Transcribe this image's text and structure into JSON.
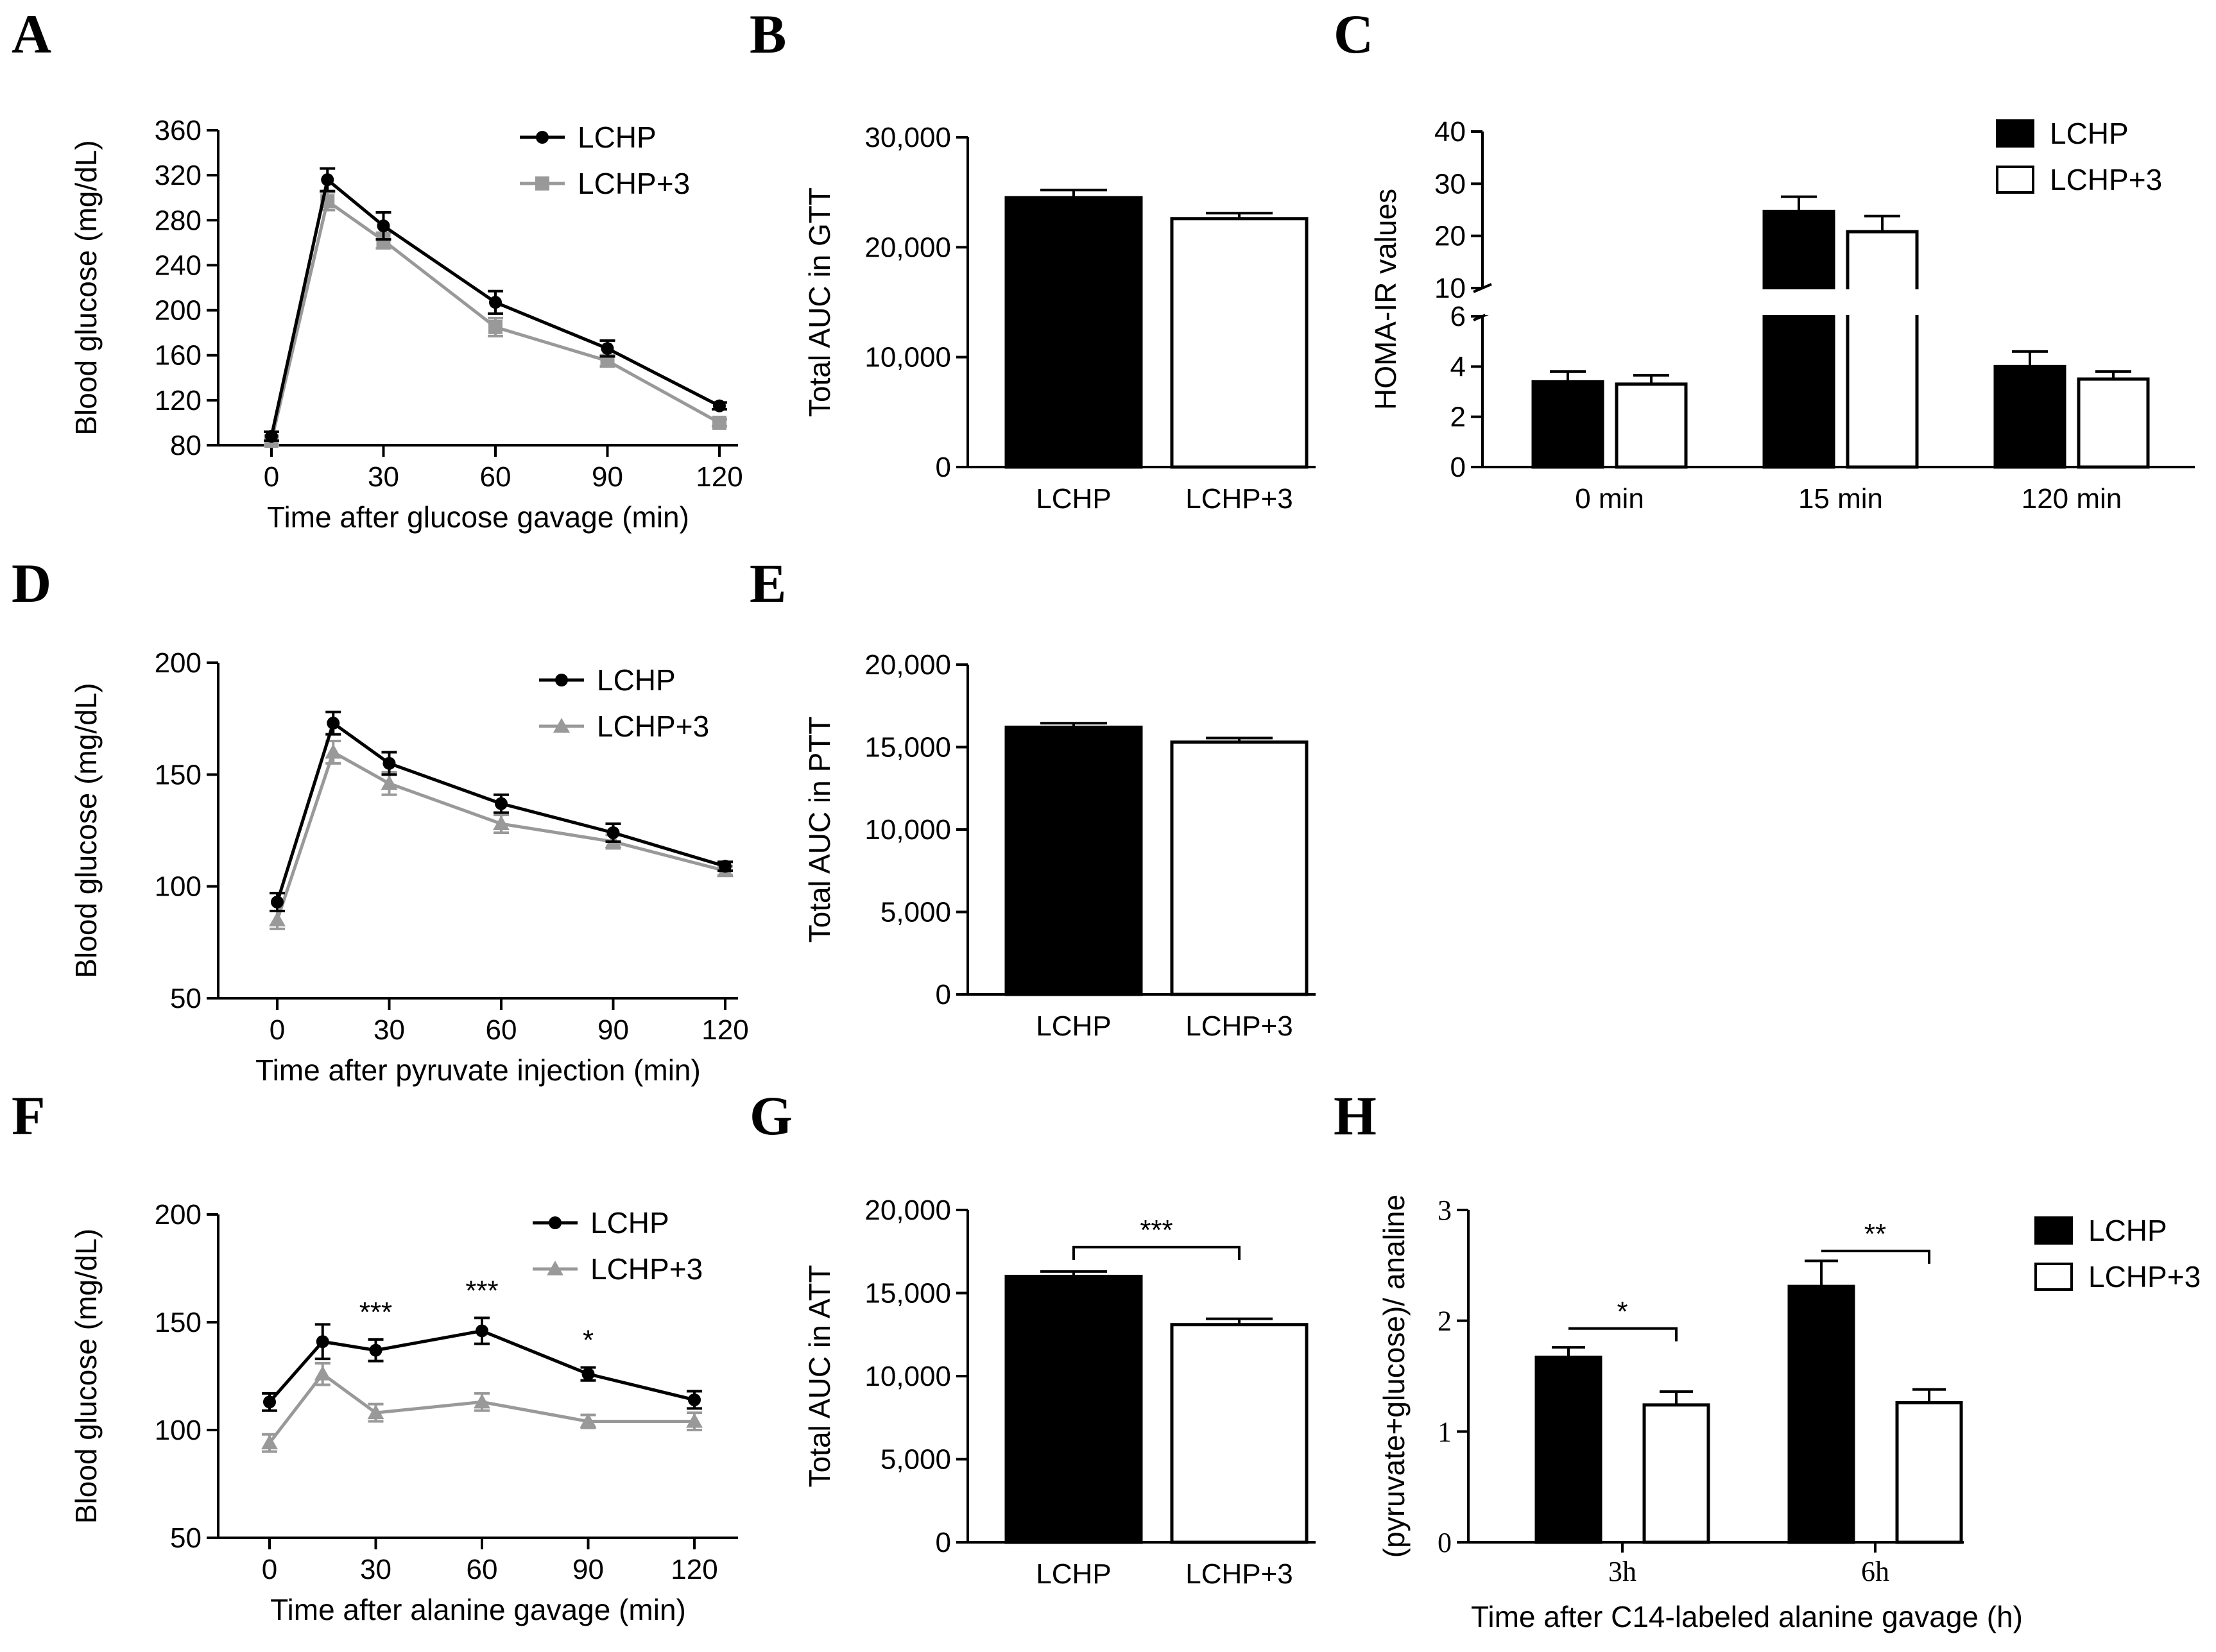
{
  "colors": {
    "lchp": "#000000",
    "lchp3": "#999999",
    "bar_lchp": "#000000",
    "bar_lchp3": "#ffffff"
  },
  "chart_data": [
    {
      "panel": "A",
      "type": "line",
      "title": "",
      "xlabel": "Time after glucose gavage (min)",
      "ylabel": "Blood glucose (mg/dL)",
      "xlim": [
        0,
        120
      ],
      "ylim": [
        80,
        360
      ],
      "xticks": [
        0,
        30,
        60,
        90,
        120
      ],
      "yticks": [
        80,
        120,
        160,
        200,
        240,
        280,
        320,
        360
      ],
      "x": [
        0,
        15,
        30,
        60,
        90,
        120
      ],
      "series": [
        {
          "name": "LCHP",
          "marker": "circle",
          "values": [
            88,
            316,
            275,
            207,
            166,
            115
          ],
          "err": [
            4,
            10,
            12,
            10,
            7,
            3
          ]
        },
        {
          "name": "LCHP+3",
          "marker": "square",
          "values": [
            84,
            297,
            262,
            185,
            155,
            100
          ],
          "err": [
            4,
            8,
            7,
            8,
            5,
            3
          ]
        }
      ],
      "legend": "top-right"
    },
    {
      "panel": "B",
      "type": "bar",
      "title": "",
      "xlabel": "",
      "ylabel": "Total AUC in GTT",
      "ylim": [
        0,
        30000
      ],
      "yticks": [
        0,
        10000,
        20000,
        30000
      ],
      "ytick_labels": [
        "0",
        "10,000",
        "20,000",
        "30,000"
      ],
      "categories": [
        "LCHP",
        "LCHP+3"
      ],
      "values": [
        24500,
        22600
      ],
      "err": [
        700,
        500
      ]
    },
    {
      "panel": "C",
      "type": "bar",
      "title": "",
      "xlabel": "",
      "ylabel": "HOMA-IR values",
      "broken_axis": {
        "lower": [
          0,
          6
        ],
        "upper": [
          10,
          40
        ]
      },
      "yticks_lower": [
        0,
        2,
        4,
        6
      ],
      "yticks_upper": [
        10,
        20,
        30,
        40
      ],
      "categories": [
        "0 min",
        "15 min",
        "120 min"
      ],
      "series": [
        {
          "name": "LCHP",
          "values": [
            3.4,
            24.7,
            4.0
          ],
          "err": [
            0.4,
            2.8,
            0.6
          ]
        },
        {
          "name": "LCHP+3",
          "values": [
            3.3,
            20.8,
            3.5
          ],
          "err": [
            0.35,
            3.0,
            0.3
          ]
        }
      ],
      "legend": "top-right"
    },
    {
      "panel": "D",
      "type": "line",
      "title": "",
      "xlabel": "Time after pyruvate injection (min)",
      "ylabel": "Blood glucose (mg/dL)",
      "xlim": [
        0,
        120
      ],
      "ylim": [
        50,
        200
      ],
      "xticks": [
        0,
        30,
        60,
        90,
        120
      ],
      "yticks": [
        50,
        100,
        150,
        200
      ],
      "x": [
        0,
        15,
        30,
        60,
        90,
        120
      ],
      "series": [
        {
          "name": "LCHP",
          "marker": "circle",
          "values": [
            93,
            173,
            155,
            137,
            124,
            109
          ],
          "err": [
            4,
            5,
            5,
            4,
            4,
            2
          ]
        },
        {
          "name": "LCHP+3",
          "marker": "triangle",
          "values": [
            85,
            160,
            146,
            128,
            120,
            107
          ],
          "err": [
            4,
            5,
            5,
            4,
            3,
            2
          ]
        }
      ],
      "legend": "top-right"
    },
    {
      "panel": "E",
      "type": "bar",
      "title": "",
      "xlabel": "",
      "ylabel": "Total AUC in PTT",
      "ylim": [
        0,
        20000
      ],
      "yticks": [
        0,
        5000,
        10000,
        15000,
        20000
      ],
      "ytick_labels": [
        "0",
        "5,000",
        "10,000",
        "15,000",
        "20,000"
      ],
      "categories": [
        "LCHP",
        "LCHP+3"
      ],
      "values": [
        16200,
        15300
      ],
      "err": [
        250,
        250
      ]
    },
    {
      "panel": "F",
      "type": "line",
      "title": "",
      "xlabel": "Time after alanine gavage (min)",
      "ylabel": "Blood glucose (mg/dL)",
      "xlim": [
        0,
        120
      ],
      "ylim": [
        50,
        200
      ],
      "xticks": [
        0,
        30,
        60,
        90,
        120
      ],
      "yticks": [
        50,
        100,
        150,
        200
      ],
      "x": [
        0,
        15,
        30,
        60,
        90,
        120
      ],
      "series": [
        {
          "name": "LCHP",
          "marker": "circle",
          "values": [
            113,
            141,
            137,
            146,
            126,
            114
          ],
          "err": [
            4,
            8,
            5,
            6,
            3,
            4
          ]
        },
        {
          "name": "LCHP+3",
          "marker": "triangle",
          "values": [
            94,
            126,
            108,
            113,
            104,
            104
          ],
          "err": [
            4,
            5,
            4,
            4,
            3,
            4
          ]
        }
      ],
      "annotations": [
        {
          "x": 30,
          "text": "***"
        },
        {
          "x": 60,
          "text": "***"
        },
        {
          "x": 90,
          "text": "*"
        }
      ],
      "legend": "top-right"
    },
    {
      "panel": "G",
      "type": "bar",
      "title": "",
      "xlabel": "",
      "ylabel": "Total AUC in ATT",
      "ylim": [
        0,
        20000
      ],
      "yticks": [
        0,
        5000,
        10000,
        15000,
        20000
      ],
      "ytick_labels": [
        "0",
        "5,000",
        "10,000",
        "15,000",
        "20,000"
      ],
      "categories": [
        "LCHP",
        "LCHP+3"
      ],
      "values": [
        16000,
        13100
      ],
      "err": [
        300,
        350
      ],
      "significance": "***"
    },
    {
      "panel": "H",
      "type": "bar",
      "title": "",
      "xlabel": "Time after C14-labeled alanine gavage (h)",
      "ylabel": "(pyruvate+glucose)/ analine",
      "ylim": [
        0,
        3
      ],
      "yticks": [
        0,
        1,
        2,
        3
      ],
      "categories": [
        "3h",
        "6h"
      ],
      "series": [
        {
          "name": "LCHP",
          "values": [
            1.67,
            2.31
          ],
          "err": [
            0.09,
            0.23
          ]
        },
        {
          "name": "LCHP+3",
          "values": [
            1.24,
            1.26
          ],
          "err": [
            0.12,
            0.12
          ]
        }
      ],
      "significance": [
        "*",
        "**"
      ],
      "legend": "top-right"
    }
  ]
}
